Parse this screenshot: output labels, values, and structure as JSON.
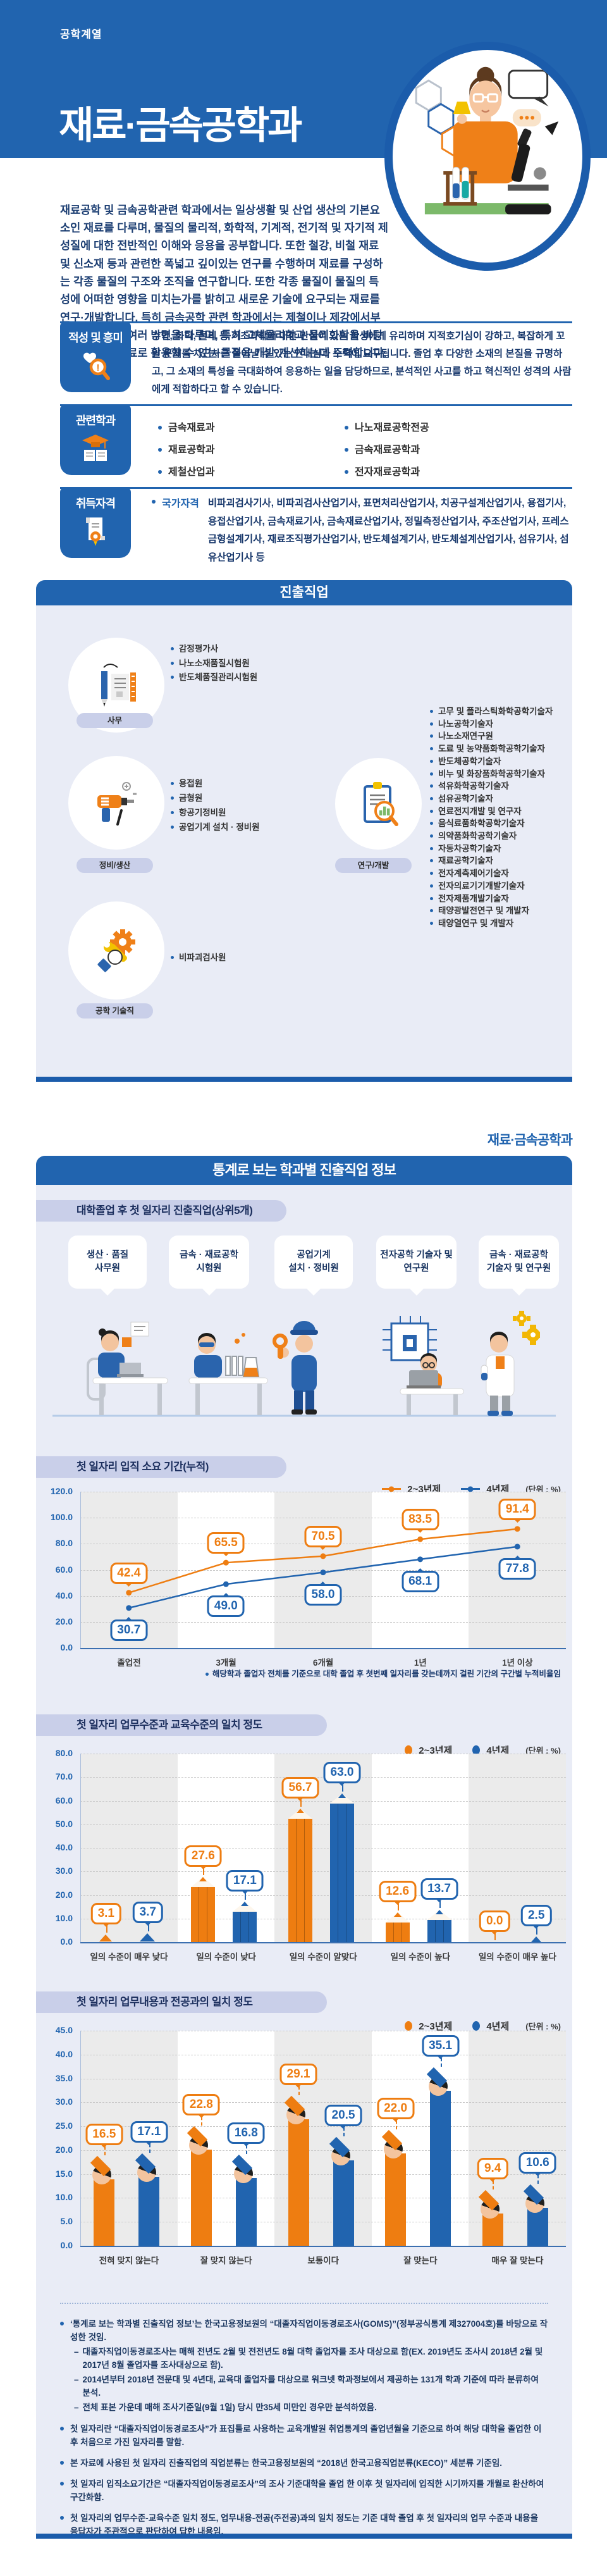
{
  "hero": {
    "category": "공학계열",
    "title": "재료·금속공학과"
  },
  "intro": "재료공학 및 금속공학관련 학과에서는 일상생활 및 산업 생산의 기본요소인 재료를 다루며, 물질의 물리적, 화학적, 기계적, 전기적 및 자기적 제 성질에 대한 전반적인 이해와 응용을 공부합니다. 또한 철강, 비철 재료 및 신소재 등과 관련한 폭넓고 깊이있는 연구를 수행하며 재료를 구성하는 각종 물질의 구조와 조직을 연구합니다. 또한 각종 물질이 물질의 특성에 어떠한 영향을 미치는가를 밝히고 새로운 기술에 요구되는 재료를 연구·개발합니다. 특히 금속공학 관련 학과에서는 제철이나 제강에서부터 신소재까지 여러 방면을 다루며, 특히 고체물리학과 물리화학을 바탕으로 산업용 재료로 활용할 수 있는 물질을 개발·개선하는데 주력합니다.",
  "sections": {
    "aptitude": {
      "label": "적성 및 흥미",
      "text": "수학, 화학, 물리 등 기초과학에 대한 관심이 있는 학생에게 유리하며 지적호기심이 강하고, 복잡하게 꼬인 문제를 차근차근 풀어낼 수 있는 인내심과 노력이 요구됩니다. 졸업 후 다양한 소재의 본질을 규명하고, 그 소재의 특성을 극대화하여 응용하는 일을 담당하므로, 분석적인 사고를 하고 혁신적인 성격의 사람에게 적합하다고 할 수 있습니다."
    },
    "related": {
      "label": "관련학과",
      "items_left": [
        "금속재료과",
        "재료공학과",
        "제철산업과"
      ],
      "items_right": [
        "나노재료공학전공",
        "금속재료공학과",
        "전자재료공학과"
      ]
    },
    "certs": {
      "label": "취득자격",
      "bullet_label": "국가자격",
      "text": "비파괴검사기사, 비파괴검사산업기사, 표면처리산업기사, 치공구설계산업기사, 용접기사, 용접산업기사, 금속재료기사, 금속재료산업기사, 정밀측정산업기사, 주조산업기사, 프레스금형설계기사, 재료조직평가산업기사, 반도체설계기사, 반도체설계산업기사, 섬유기사, 섬유산업기사 등"
    }
  },
  "jobs": {
    "title": "진출직업",
    "groups": [
      {
        "name": "사무",
        "items": [
          "감정평가사",
          "나노소재품질시험원",
          "반도체품질관리시험원"
        ]
      },
      {
        "name": "정비/생산",
        "items": [
          "용접원",
          "금형원",
          "항공기정비원",
          "공업기계 설치 · 정비원"
        ]
      },
      {
        "name": "연구/개발",
        "items": [
          "고무 및 플라스틱화학공학기술자",
          "나노공학기술자",
          "나노소재연구원",
          "도료 및 농약품화학공학기술자",
          "반도체공학기술자",
          "비누 및 화장품화학공학기술자",
          "석유화학공학기술자",
          "섬유공학기술자",
          "연료전지개발 및 연구자",
          "음식료품화학공학기술자",
          "의약품화학공학기술자",
          "자동차공학기술자",
          "재료공학기술자",
          "전자계측제어기술자",
          "전자의료기기개발기술자",
          "전자제품개발기술자",
          "태양광발전연구 및 개발자",
          "태양열연구 및 개발자"
        ]
      },
      {
        "name": "공학 기술직",
        "items": [
          "비파괴검사원"
        ]
      }
    ]
  },
  "stats": {
    "dept_label": "재료·금속공학과",
    "title": "통계로 보는 학과별 진출직업 정보",
    "top_jobs": {
      "badge": "대학졸업 후 첫 일자리 진출직업(상위5개)",
      "jobs": [
        "생산 · 품질\n사무원",
        "금속 · 재료공학\n시험원",
        "공업기계\n설치 · 정비원",
        "전자공학 기술자 및\n연구원",
        "금속 · 재료공학\n기술자 및 연구원"
      ]
    }
  },
  "chart_data": [
    {
      "type": "line",
      "title": "첫 일자리 입직 소요 기간(누적)",
      "unit_label": "(단위 : %)",
      "categories": [
        "졸업전",
        "3개월",
        "6개월",
        "1년",
        "1년 이상"
      ],
      "series": [
        {
          "name": "2~3년제",
          "color": "#ee7d11",
          "values": [
            42.4,
            65.5,
            70.5,
            83.5,
            91.4
          ]
        },
        {
          "name": "4년제",
          "color": "#2164af",
          "values": [
            30.7,
            49.0,
            58.0,
            68.1,
            77.8
          ]
        }
      ],
      "ylim": [
        0,
        120
      ],
      "yticks": [
        0,
        20,
        40,
        60,
        80,
        100,
        120
      ],
      "grid": true,
      "legend_position": "top-right",
      "note": "해당학과 졸업자 전체를 기준으로 대학 졸업 후 첫번째 일자리를 갖는데까지 걸린 기간의 구간별 누적비율임"
    },
    {
      "type": "bar",
      "variant": "pencil",
      "title": "첫 일자리 업무수준과 교육수준의 일치 정도",
      "unit_label": "(단위 : %)",
      "categories": [
        "일의 수준이 매우 낮다",
        "일의 수준이 낮다",
        "일의 수준이 알맞다",
        "일의 수준이 높다",
        "일의 수준이 매우 높다"
      ],
      "series": [
        {
          "name": "2~3년제",
          "color": "#ee7d11",
          "values": [
            3.1,
            27.6,
            56.7,
            12.6,
            0.0
          ]
        },
        {
          "name": "4년제",
          "color": "#2164af",
          "values": [
            3.7,
            17.1,
            63.0,
            13.7,
            2.5
          ]
        }
      ],
      "ylim": [
        0,
        80
      ],
      "yticks": [
        0,
        10,
        20,
        30,
        40,
        50,
        60,
        70,
        80
      ],
      "grid": true,
      "legend_position": "top-right"
    },
    {
      "type": "bar",
      "variant": "graduate",
      "title": "첫 일자리 업무내용과 전공과의 일치 정도",
      "unit_label": "(단위 : %)",
      "categories": [
        "전혀 맞지 않는다",
        "잘 맞지 않는다",
        "보통이다",
        "잘 맞는다",
        "매우 잘 맞는다"
      ],
      "series": [
        {
          "name": "2~3년제",
          "color": "#ee7d11",
          "values": [
            16.5,
            22.8,
            29.1,
            22.0,
            9.4
          ]
        },
        {
          "name": "4년제",
          "color": "#2164af",
          "values": [
            17.1,
            16.8,
            20.5,
            35.1,
            10.6
          ]
        }
      ],
      "ylim": [
        0,
        45
      ],
      "yticks": [
        0,
        5,
        10,
        15,
        20,
        25,
        30,
        35,
        40,
        45
      ],
      "grid": true,
      "legend_position": "top-right"
    }
  ],
  "footnotes": [
    {
      "text": "‘통계로 보는 학과별 진출직업 정보’는 한국고용정보원의 “대졸자직업이동경로조사(GOMS)”(정부공식통계 제327004호)를 바탕으로 작성한 것임.",
      "subs": [
        "대졸자직업이동경로조사는 매해 전년도 2월 및 전전년도 8월 대학 졸업자를 조사 대상으로 함(EX. 2019년도 조사시 2018년 2월 및 2017년 8월 졸업자를 조사대상으로 함).",
        "2014년부터 2018년 전문대 및 4년대, 교육대 졸업자를 대상으로 워크넷 학과정보에서 제공하는 131개 학과 기준에 따라 분류하여 분석.",
        "전체 표본 가운데 매해 조사기준일(9월 1일) 당시 만35세 미만인 경우만 분석하였음."
      ]
    },
    {
      "text": "첫 일자리란 “대졸자직업이동경로조사”가 표집틀로 사용하는 교육개발원 취업통계의 졸업년월을 기준으로 하여 해당 대학을 졸업한 이후 처음으로 가진 일자리를 말함."
    },
    {
      "text": "본 자료에 사용된 첫 일자리 진출직업의 직업분류는 한국고용정보원의 “2018년 한국고용직업분류(KECO)” 세분류 기준임."
    },
    {
      "text": "첫 일자리 입직소요기간은 “대졸자직업이동경로조사”의 조사 기준대학을 졸업 한 이후 첫 일자리에 입직한 시기까지를 개월로 환산하여 구간화함."
    },
    {
      "text": "첫 일자리의 업무수준-교육수준 일치 정도, 업무내용-전공(주전공)과의 일치 정도는 기준 대학 졸업 후 첫 일자리의 업무 수준과 내용을 응답자가 주관적으로 판단하여 답한 내용임."
    }
  ]
}
